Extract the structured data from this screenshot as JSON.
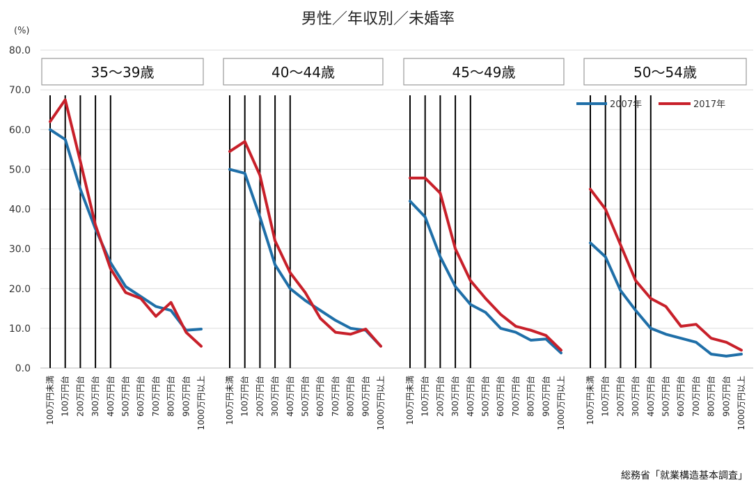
{
  "chart_data": {
    "type": "line",
    "title": "男性／年収別／未婚率",
    "yunit": "(%)",
    "ylim": [
      0,
      80
    ],
    "yticks": [
      "0.0",
      "10.0",
      "20.0",
      "30.0",
      "40.0",
      "50.0",
      "60.0",
      "70.0",
      "80.0"
    ],
    "grid": true,
    "legend_position": "top-right",
    "categories": [
      "100万円未満",
      "100万円台",
      "200万円台",
      "300万円台",
      "400万円台",
      "500万円台",
      "600万円台",
      "700万円台",
      "800万円台",
      "900万円台",
      "1000万円以上"
    ],
    "series_styles": [
      {
        "name": "2007年",
        "color": "#1f6fa8"
      },
      {
        "name": "2017年",
        "color": "#c8202a"
      }
    ],
    "panels": [
      {
        "label": "35〜39歳",
        "series": [
          {
            "name": "2007年",
            "values": [
              60.0,
              57.5,
              45.0,
              35.0,
              26.5,
              20.5,
              18.0,
              15.5,
              14.5,
              9.5,
              9.8
            ]
          },
          {
            "name": "2017年",
            "values": [
              62.0,
              67.5,
              52.0,
              36.0,
              25.0,
              19.0,
              17.5,
              13.0,
              16.5,
              9.0,
              5.5
            ]
          }
        ]
      },
      {
        "label": "40〜44歳",
        "series": [
          {
            "name": "2007年",
            "values": [
              50.0,
              49.0,
              38.0,
              26.0,
              20.0,
              17.0,
              14.5,
              12.0,
              10.0,
              9.5,
              5.5
            ]
          },
          {
            "name": "2017年",
            "values": [
              54.5,
              57.0,
              48.5,
              32.0,
              24.0,
              19.0,
              12.5,
              9.0,
              8.5,
              9.8,
              5.5
            ]
          }
        ]
      },
      {
        "label": "45〜49歳",
        "series": [
          {
            "name": "2007年",
            "values": [
              42.0,
              38.0,
              28.0,
              20.5,
              16.0,
              14.0,
              10.0,
              9.0,
              7.0,
              7.3,
              3.8
            ]
          },
          {
            "name": "2017年",
            "values": [
              47.8,
              47.8,
              44.0,
              30.0,
              22.0,
              17.5,
              13.5,
              10.5,
              9.5,
              8.2,
              4.5
            ]
          }
        ]
      },
      {
        "label": "50〜54歳",
        "series": [
          {
            "name": "2007年",
            "values": [
              31.5,
              28.0,
              19.5,
              14.5,
              10.0,
              8.5,
              7.5,
              6.5,
              3.5,
              3.0,
              3.5
            ]
          },
          {
            "name": "2017年",
            "values": [
              45.0,
              40.0,
              31.0,
              22.0,
              17.5,
              15.5,
              10.5,
              11.0,
              7.5,
              6.5,
              4.5
            ]
          }
        ]
      }
    ],
    "legend": [
      "2007年",
      "2017年"
    ],
    "source": "総務省「就業構造基本調査」"
  }
}
